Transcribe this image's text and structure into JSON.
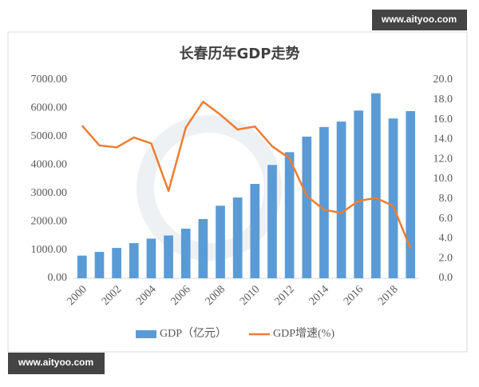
{
  "chart_data": {
    "type": "bar",
    "title": "长春历年GDP走势",
    "categories": [
      "2000",
      null,
      "2002",
      null,
      "2004",
      null,
      "2006",
      null,
      "2008",
      null,
      "2010",
      null,
      "2012",
      null,
      "2014",
      null,
      "2016",
      null,
      "2018",
      null
    ],
    "series": [
      {
        "name": "GDP（亿元）",
        "type": "bar",
        "color": "#5b9bd5",
        "axis": "y",
        "values": [
          800,
          930,
          1070,
          1240,
          1400,
          1510,
          1750,
          2090,
          2560,
          2850,
          3330,
          4000,
          4450,
          5000,
          5340,
          5530,
          5920,
          6530,
          5640,
          5900
        ]
      },
      {
        "name": "GDP增速(%)",
        "type": "line",
        "color": "#ed7d31",
        "axis": "y2",
        "values": [
          15.4,
          13.4,
          13.2,
          14.2,
          13.6,
          8.8,
          15.2,
          17.8,
          16.5,
          15.0,
          15.3,
          13.3,
          12.1,
          8.3,
          6.9,
          6.6,
          7.8,
          8.1,
          7.3,
          3.0
        ]
      }
    ],
    "ylim": [
      0,
      7000
    ],
    "yticks": [
      {
        "value": 0,
        "label": "0.00"
      },
      {
        "value": 1000,
        "label": "1000.00"
      },
      {
        "value": 2000,
        "label": "2000.00"
      },
      {
        "value": 3000,
        "label": "3000.00"
      },
      {
        "value": 4000,
        "label": "4000.00"
      },
      {
        "value": 5000,
        "label": "5000.00"
      },
      {
        "value": 6000,
        "label": "6000.00"
      },
      {
        "value": 7000,
        "label": "7000.00"
      }
    ],
    "y2lim": [
      0,
      20
    ],
    "y2ticks": [
      {
        "value": 0,
        "label": "0.0"
      },
      {
        "value": 2,
        "label": "2.0"
      },
      {
        "value": 4,
        "label": "4.0"
      },
      {
        "value": 6,
        "label": "6.0"
      },
      {
        "value": 8,
        "label": "8.0"
      },
      {
        "value": 10,
        "label": "10.0"
      },
      {
        "value": 12,
        "label": "12.0"
      },
      {
        "value": 14,
        "label": "14.0"
      },
      {
        "value": 16,
        "label": "16.0"
      },
      {
        "value": 18,
        "label": "18.0"
      },
      {
        "value": 20,
        "label": "20.0"
      }
    ],
    "grid": false,
    "legend": "bottom"
  },
  "watermarks": [
    "www.aityoo.com",
    "www.aityoo.com"
  ]
}
